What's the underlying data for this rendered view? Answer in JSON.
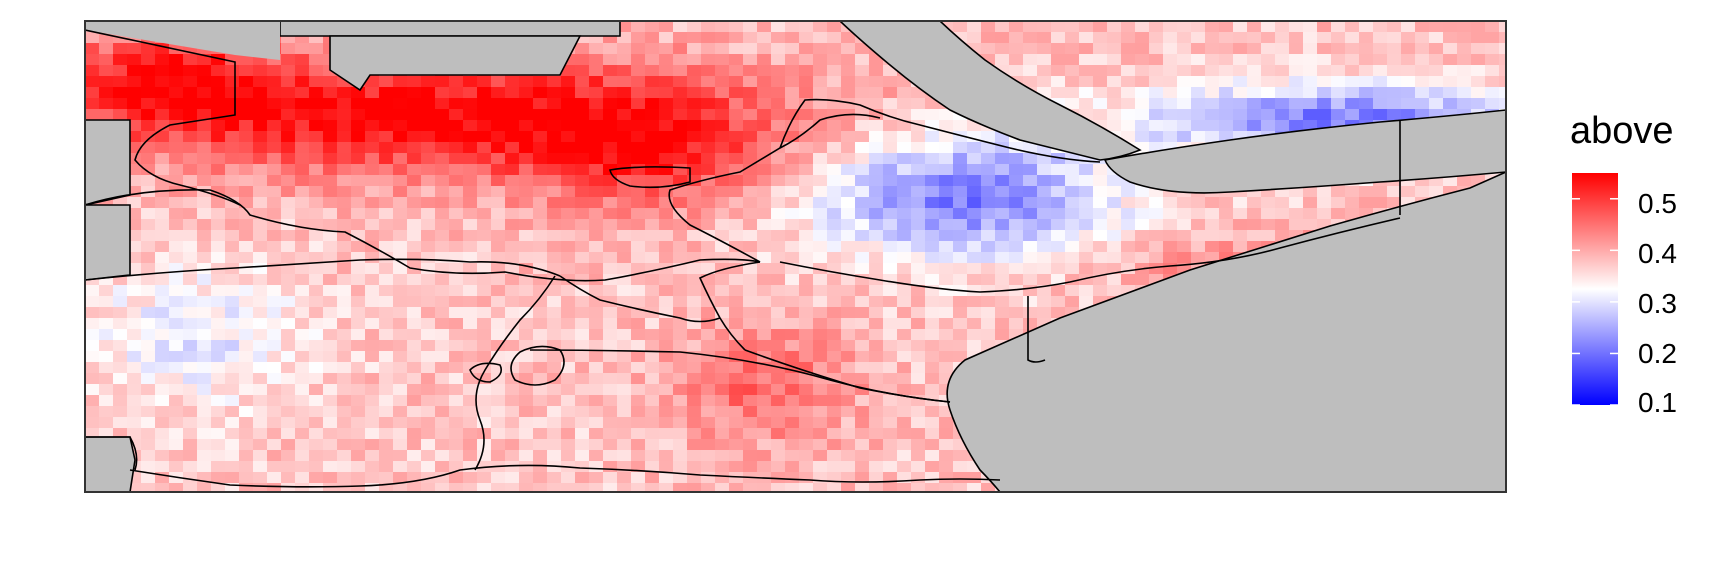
{
  "legend": {
    "title": "above",
    "ticks": [
      "0.5",
      "0.4",
      "0.3",
      "0.2",
      "0.1"
    ],
    "tick_values": [
      0.5,
      0.4,
      0.3,
      0.2,
      0.1
    ],
    "range": [
      0.1,
      0.55
    ],
    "colors": {
      "low": "#0000ff",
      "mid": "#ffffff",
      "high": "#ff0000"
    },
    "midpoint": 0.33
  },
  "map": {
    "land_mask_color": "#bebebe",
    "border_color": "#000000",
    "panel_border_color": "#333333"
  }
}
